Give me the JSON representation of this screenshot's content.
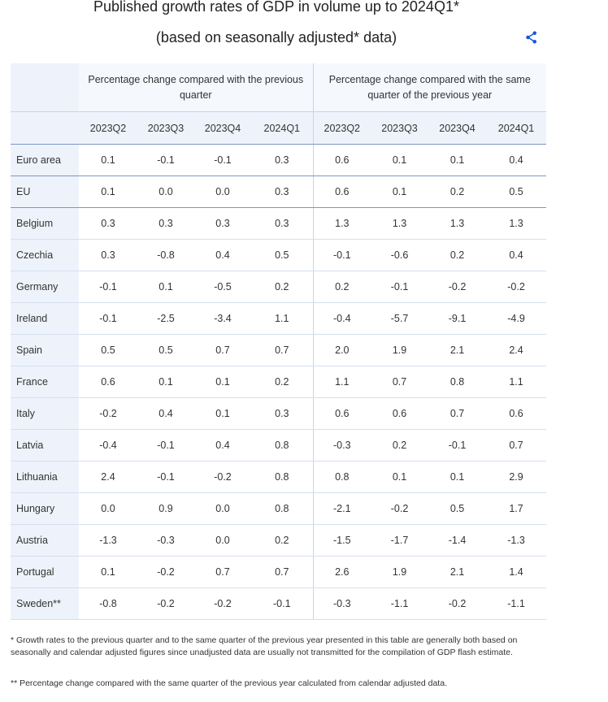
{
  "title_line1": "Published growth rates of GDP in volume up to 2024Q1*",
  "title_line2": "(based on seasonally adjusted* data)",
  "share_icon": "share-icon",
  "groups": [
    "Percentage change compared with the previous quarter",
    "Percentage change compared with the same quarter of the previous year"
  ],
  "quarters": [
    "2023Q2",
    "2023Q3",
    "2023Q4",
    "2024Q1",
    "2023Q2",
    "2023Q3",
    "2023Q4",
    "2024Q1"
  ],
  "rows": [
    {
      "country": "Euro area",
      "values": [
        "0.1",
        "-0.1",
        "-0.1",
        "0.3",
        "0.6",
        "0.1",
        "0.1",
        "0.4"
      ]
    },
    {
      "country": "EU",
      "values": [
        "0.1",
        "0.0",
        "0.0",
        "0.3",
        "0.6",
        "0.1",
        "0.2",
        "0.5"
      ]
    },
    {
      "country": "Belgium",
      "values": [
        "0.3",
        "0.3",
        "0.3",
        "0.3",
        "1.3",
        "1.3",
        "1.3",
        "1.3"
      ]
    },
    {
      "country": "Czechia",
      "values": [
        "0.3",
        "-0.8",
        "0.4",
        "0.5",
        "-0.1",
        "-0.6",
        "0.2",
        "0.4"
      ]
    },
    {
      "country": "Germany",
      "values": [
        "-0.1",
        "0.1",
        "-0.5",
        "0.2",
        "0.2",
        "-0.1",
        "-0.2",
        "-0.2"
      ]
    },
    {
      "country": "Ireland",
      "values": [
        "-0.1",
        "-2.5",
        "-3.4",
        "1.1",
        "-0.4",
        "-5.7",
        "-9.1",
        "-4.9"
      ]
    },
    {
      "country": "Spain",
      "values": [
        "0.5",
        "0.5",
        "0.7",
        "0.7",
        "2.0",
        "1.9",
        "2.1",
        "2.4"
      ]
    },
    {
      "country": "France",
      "values": [
        "0.6",
        "0.1",
        "0.1",
        "0.2",
        "1.1",
        "0.7",
        "0.8",
        "1.1"
      ]
    },
    {
      "country": "Italy",
      "values": [
        "-0.2",
        "0.4",
        "0.1",
        "0.3",
        "0.6",
        "0.6",
        "0.7",
        "0.6"
      ]
    },
    {
      "country": "Latvia",
      "values": [
        "-0.4",
        "-0.1",
        "0.4",
        "0.8",
        "-0.3",
        "0.2",
        "-0.1",
        "0.7"
      ]
    },
    {
      "country": "Lithuania",
      "values": [
        "2.4",
        "-0.1",
        "-0.2",
        "0.8",
        "0.8",
        "0.1",
        "0.1",
        "2.9"
      ]
    },
    {
      "country": "Hungary",
      "values": [
        "0.0",
        "0.9",
        "0.0",
        "0.8",
        "-2.1",
        "-0.2",
        "0.5",
        "1.7"
      ]
    },
    {
      "country": "Austria",
      "values": [
        "-1.3",
        "-0.3",
        "0.0",
        "0.2",
        "-1.5",
        "-1.7",
        "-1.4",
        "-1.3"
      ]
    },
    {
      "country": "Portugal",
      "values": [
        "0.1",
        "-0.2",
        "0.7",
        "0.7",
        "2.6",
        "1.9",
        "2.1",
        "1.4"
      ]
    },
    {
      "country": "Sweden**",
      "values": [
        "-0.8",
        "-0.2",
        "-0.2",
        "-0.1",
        "-0.3",
        "-1.1",
        "-0.2",
        "-1.1"
      ]
    }
  ],
  "footnote1": "*  Growth rates to the previous quarter and to the same quarter of the previous year presented in this table are generally both based on seasonally and calendar adjusted figures since unadjusted data are usually not transmitted for the compilation of GDP flash estimate.",
  "footnote2": "**  Percentage change compared with the same quarter of the previous year calculated from calendar adjusted data."
}
